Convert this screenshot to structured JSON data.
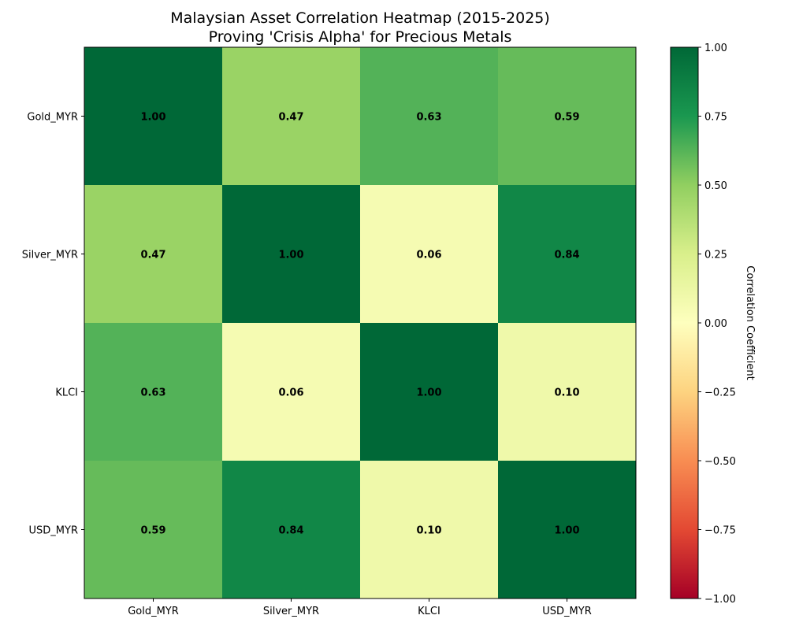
{
  "chart_data": {
    "type": "heatmap",
    "title_lines": [
      "Malaysian Asset Correlation Heatmap (2015-2025)",
      "Proving 'Crisis Alpha' for Precious Metals"
    ],
    "x_labels": [
      "Gold_MYR",
      "Silver_MYR",
      "KLCI",
      "USD_MYR"
    ],
    "y_labels": [
      "Gold_MYR",
      "Silver_MYR",
      "KLCI",
      "USD_MYR"
    ],
    "values": [
      [
        1.0,
        0.47,
        0.63,
        0.59
      ],
      [
        0.47,
        1.0,
        0.06,
        0.84
      ],
      [
        0.63,
        0.06,
        1.0,
        0.1
      ],
      [
        0.59,
        0.84,
        0.1,
        1.0
      ]
    ],
    "annotation_format": "0.00",
    "colormap": "RdYlGn",
    "colorbar": {
      "label": "Correlation Coefficient",
      "range": [
        -1.0,
        1.0
      ],
      "ticks": [
        1.0,
        0.75,
        0.5,
        0.25,
        0.0,
        -0.25,
        -0.5,
        -0.75,
        -1.0
      ],
      "tick_labels": [
        "1.00",
        "0.75",
        "0.50",
        "0.25",
        "0.00",
        "−0.25",
        "−0.50",
        "−0.75",
        "−1.00"
      ]
    },
    "colors": {
      "c_-1.00": "#a50026",
      "c_-0.75": "#e34933",
      "c_-0.50": "#f88d52",
      "c_-0.25": "#fdd380",
      "c_0.00": "#feffbe",
      "c_0.25": "#d9ef8b",
      "c_0.50": "#91cf60",
      "c_0.75": "#1a9850",
      "c_1.00": "#006837"
    }
  }
}
